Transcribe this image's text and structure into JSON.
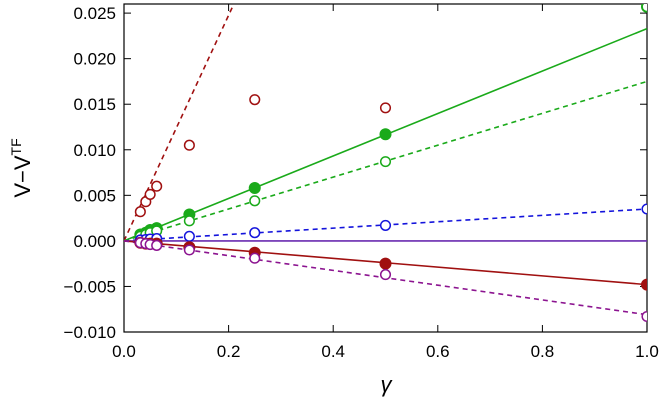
{
  "chart_data": {
    "type": "scatter",
    "xlabel": "γ",
    "ylabel": {
      "main": "V−V",
      "superscript": "TF"
    },
    "xlim": [
      0.0,
      1.0
    ],
    "ylim": [
      -0.01,
      0.026
    ],
    "x_ticks": [
      0.0,
      0.2,
      0.4,
      0.6,
      0.8,
      1.0
    ],
    "x_tick_labels": [
      "0.0",
      "0.2",
      "0.4",
      "0.6",
      "0.8",
      "1.0"
    ],
    "y_ticks": [
      -0.01,
      -0.005,
      0.0,
      0.005,
      0.01,
      0.015,
      0.02,
      0.025
    ],
    "y_tick_labels": [
      "−0.010",
      "−0.005",
      "0.000",
      "0.005",
      "0.010",
      "0.015",
      "0.020",
      "0.025"
    ],
    "colors": {
      "green": "#1aaa1a",
      "red": "#a01010",
      "blue": "#1414dc",
      "purple": "#8c1490",
      "violet": "#6a2bb0"
    },
    "series": [
      {
        "name": "red-open",
        "color": "#a01010",
        "marker": "open",
        "x": [
          0.03125,
          0.041667,
          0.05,
          0.0625,
          0.125,
          0.25,
          0.5
        ],
        "y": [
          0.0032,
          0.0043,
          0.0051,
          0.006,
          0.0105,
          0.0155,
          0.0146
        ]
      },
      {
        "name": "green-filled",
        "color": "#1aaa1a",
        "marker": "filled",
        "x": [
          0.03125,
          0.041667,
          0.05,
          0.0625,
          0.125,
          0.25,
          0.5,
          1.0
        ],
        "y": [
          0.0007,
          0.0009,
          0.0012,
          0.0014,
          0.0029,
          0.0058,
          0.0117,
          0.0257
        ]
      },
      {
        "name": "green-open",
        "color": "#1aaa1a",
        "marker": "open",
        "x": [
          0.03125,
          0.041667,
          0.05,
          0.0625,
          0.125,
          0.25,
          0.5,
          1.0
        ],
        "y": [
          0.0005,
          0.0007,
          0.0009,
          0.0011,
          0.0022,
          0.0044,
          0.0087,
          0.0257
        ]
      },
      {
        "name": "blue-open",
        "color": "#1414dc",
        "marker": "open",
        "x": [
          0.03125,
          0.041667,
          0.05,
          0.0625,
          0.125,
          0.25,
          0.5,
          1.0
        ],
        "y": [
          0.0001,
          0.00015,
          0.0002,
          0.00025,
          0.0005,
          0.0009,
          0.0017,
          0.0035
        ]
      },
      {
        "name": "red-filled",
        "color": "#a01010",
        "marker": "filled",
        "x": [
          0.03125,
          0.041667,
          0.05,
          0.0625,
          0.125,
          0.25,
          0.5,
          1.0
        ],
        "y": [
          -0.0002,
          -0.0003,
          -0.0003,
          -0.0003,
          -0.0007,
          -0.0013,
          -0.0025,
          -0.0048
        ]
      },
      {
        "name": "purple-open",
        "color": "#8c1490",
        "marker": "open",
        "x": [
          0.03125,
          0.041667,
          0.05,
          0.0625,
          0.125,
          0.25,
          0.5,
          1.0
        ],
        "y": [
          -0.0002,
          -0.0003,
          -0.0004,
          -0.0005,
          -0.001,
          -0.0019,
          -0.0037,
          -0.0083
        ]
      }
    ],
    "lines": [
      {
        "name": "red-dashed-fit",
        "color": "#a01010",
        "style": "dashed",
        "x": [
          0.0,
          0.21
        ],
        "y": [
          0.0,
          0.026
        ]
      },
      {
        "name": "green-solid-fit",
        "color": "#1aaa1a",
        "style": "solid",
        "x": [
          0.0,
          1.0
        ],
        "y": [
          0.0,
          0.0233
        ]
      },
      {
        "name": "green-dashed-fit",
        "color": "#1aaa1a",
        "style": "dashed",
        "x": [
          0.0,
          1.0
        ],
        "y": [
          0.0,
          0.0175
        ]
      },
      {
        "name": "blue-dashed-fit",
        "color": "#1414dc",
        "style": "dashed",
        "x": [
          0.0,
          1.0
        ],
        "y": [
          0.0,
          0.0035
        ]
      },
      {
        "name": "violet-solid-fit",
        "color": "#6a2bb0",
        "style": "solid",
        "x": [
          0.0,
          1.0
        ],
        "y": [
          0.0,
          0.0
        ]
      },
      {
        "name": "red-solid-fit",
        "color": "#a01010",
        "style": "solid",
        "x": [
          0.0,
          1.0
        ],
        "y": [
          0.0,
          -0.0048
        ]
      },
      {
        "name": "purple-dashed-fit",
        "color": "#8c1490",
        "style": "dashed",
        "x": [
          0.0,
          1.0
        ],
        "y": [
          0.0,
          -0.0081
        ]
      }
    ]
  }
}
